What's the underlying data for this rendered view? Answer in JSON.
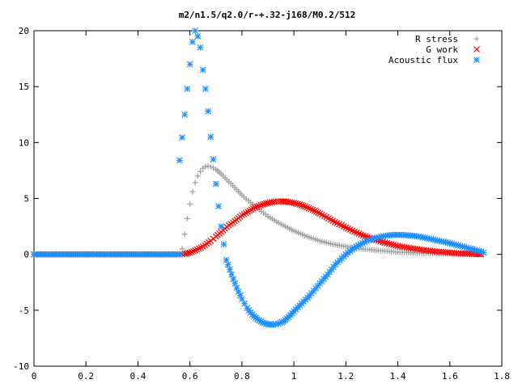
{
  "chart_data": {
    "type": "scatter",
    "title": "m2/n1.5/q2.0/r-+.32-j168/M0.2/512",
    "xlabel": "",
    "ylabel": "",
    "xlim": [
      0,
      1.8
    ],
    "ylim": [
      -10,
      20
    ],
    "xticks": [
      "0",
      "0.2",
      "0.4",
      "0.6",
      "0.8",
      "1",
      "1.2",
      "1.4",
      "1.6",
      "1.8"
    ],
    "yticks": [
      "-10",
      "-5",
      "0",
      "5",
      "10",
      "15",
      "20"
    ],
    "legend_position": "top-right",
    "grid": false,
    "series": [
      {
        "name": "R stress",
        "marker": "plus",
        "color": "#a0a0a0",
        "points": [
          [
            0.0,
            0
          ],
          [
            0.2,
            0
          ],
          [
            0.4,
            0
          ],
          [
            0.56,
            0
          ],
          [
            0.57,
            0.5
          ],
          [
            0.58,
            1.8
          ],
          [
            0.59,
            3.2
          ],
          [
            0.6,
            4.5
          ],
          [
            0.61,
            5.6
          ],
          [
            0.62,
            6.4
          ],
          [
            0.63,
            7.0
          ],
          [
            0.64,
            7.4
          ],
          [
            0.65,
            7.7
          ],
          [
            0.66,
            7.85
          ],
          [
            0.67,
            7.9
          ],
          [
            0.68,
            7.85
          ],
          [
            0.7,
            7.6
          ],
          [
            0.72,
            7.2
          ],
          [
            0.75,
            6.5
          ],
          [
            0.78,
            5.8
          ],
          [
            0.8,
            5.3
          ],
          [
            0.85,
            4.3
          ],
          [
            0.9,
            3.4
          ],
          [
            0.95,
            2.7
          ],
          [
            1.0,
            2.1
          ],
          [
            1.05,
            1.6
          ],
          [
            1.1,
            1.2
          ],
          [
            1.15,
            0.9
          ],
          [
            1.2,
            0.7
          ],
          [
            1.25,
            0.5
          ],
          [
            1.3,
            0.4
          ],
          [
            1.35,
            0.3
          ],
          [
            1.4,
            0.2
          ],
          [
            1.45,
            0.15
          ],
          [
            1.5,
            0.1
          ],
          [
            1.55,
            0.08
          ],
          [
            1.6,
            0.05
          ],
          [
            1.65,
            0.03
          ],
          [
            1.7,
            0.01
          ],
          [
            1.72,
            0
          ]
        ]
      },
      {
        "name": "G work",
        "marker": "cross",
        "color": "#ff0000",
        "points": [
          [
            0.0,
            0
          ],
          [
            0.2,
            0
          ],
          [
            0.4,
            0
          ],
          [
            0.56,
            0
          ],
          [
            0.58,
            0.05
          ],
          [
            0.6,
            0.15
          ],
          [
            0.62,
            0.35
          ],
          [
            0.65,
            0.7
          ],
          [
            0.68,
            1.2
          ],
          [
            0.7,
            1.6
          ],
          [
            0.72,
            2.0
          ],
          [
            0.75,
            2.6
          ],
          [
            0.78,
            3.1
          ],
          [
            0.8,
            3.5
          ],
          [
            0.83,
            3.9
          ],
          [
            0.85,
            4.2
          ],
          [
            0.88,
            4.45
          ],
          [
            0.9,
            4.6
          ],
          [
            0.93,
            4.72
          ],
          [
            0.95,
            4.75
          ],
          [
            0.97,
            4.72
          ],
          [
            1.0,
            4.6
          ],
          [
            1.03,
            4.4
          ],
          [
            1.05,
            4.2
          ],
          [
            1.08,
            3.9
          ],
          [
            1.1,
            3.65
          ],
          [
            1.15,
            3.0
          ],
          [
            1.2,
            2.4
          ],
          [
            1.25,
            1.85
          ],
          [
            1.3,
            1.4
          ],
          [
            1.35,
            1.05
          ],
          [
            1.4,
            0.75
          ],
          [
            1.45,
            0.55
          ],
          [
            1.5,
            0.38
          ],
          [
            1.55,
            0.25
          ],
          [
            1.6,
            0.15
          ],
          [
            1.65,
            0.08
          ],
          [
            1.7,
            0.03
          ],
          [
            1.72,
            0.01
          ]
        ]
      },
      {
        "name": "Acoustic flux",
        "marker": "star",
        "color": "#1e90ff",
        "points": [
          [
            0.0,
            0
          ],
          [
            0.2,
            0
          ],
          [
            0.4,
            0
          ],
          [
            0.56,
            0
          ],
          [
            0.56,
            8.4
          ],
          [
            0.58,
            12.5
          ],
          [
            0.59,
            14.8
          ],
          [
            0.6,
            17.0
          ],
          [
            0.61,
            19.0
          ],
          [
            0.62,
            20.0
          ],
          [
            0.63,
            19.5
          ],
          [
            0.64,
            18.5
          ],
          [
            0.65,
            16.5
          ],
          [
            0.66,
            14.8
          ],
          [
            0.67,
            12.8
          ],
          [
            0.68,
            10.5
          ],
          [
            0.69,
            8.5
          ],
          [
            0.7,
            6.3
          ],
          [
            0.71,
            4.3
          ],
          [
            0.72,
            2.5
          ],
          [
            0.73,
            0.9
          ],
          [
            0.74,
            -0.5
          ],
          [
            0.76,
            -1.8
          ],
          [
            0.78,
            -3.0
          ],
          [
            0.8,
            -4.0
          ],
          [
            0.82,
            -4.8
          ],
          [
            0.84,
            -5.4
          ],
          [
            0.86,
            -5.8
          ],
          [
            0.88,
            -6.1
          ],
          [
            0.9,
            -6.25
          ],
          [
            0.92,
            -6.3
          ],
          [
            0.94,
            -6.2
          ],
          [
            0.96,
            -6.0
          ],
          [
            0.98,
            -5.6
          ],
          [
            1.0,
            -5.1
          ],
          [
            1.03,
            -4.4
          ],
          [
            1.06,
            -3.7
          ],
          [
            1.1,
            -2.6
          ],
          [
            1.13,
            -1.8
          ],
          [
            1.16,
            -0.9
          ],
          [
            1.2,
            0.0
          ],
          [
            1.24,
            0.7
          ],
          [
            1.28,
            1.2
          ],
          [
            1.32,
            1.5
          ],
          [
            1.36,
            1.7
          ],
          [
            1.4,
            1.75
          ],
          [
            1.44,
            1.7
          ],
          [
            1.48,
            1.6
          ],
          [
            1.52,
            1.4
          ],
          [
            1.56,
            1.2
          ],
          [
            1.6,
            1.0
          ],
          [
            1.64,
            0.75
          ],
          [
            1.68,
            0.5
          ],
          [
            1.72,
            0.25
          ],
          [
            1.73,
            0.15
          ]
        ]
      }
    ]
  }
}
